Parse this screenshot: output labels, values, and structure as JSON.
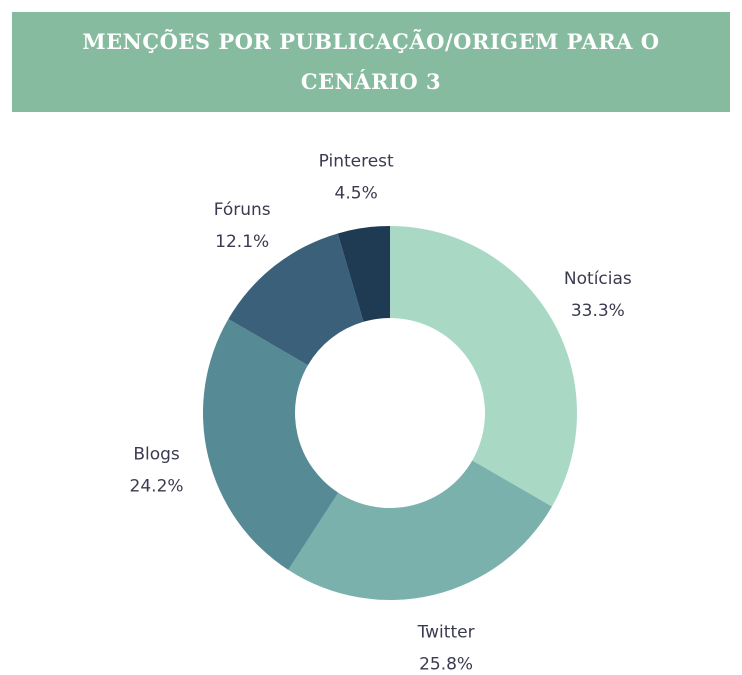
{
  "chart_data": {
    "type": "donut",
    "title": "MENÇÕES POR PUBLICAÇÃO/ORIGEM PARA O CENÁRIO 3",
    "categories": [
      "Notícias",
      "Twitter",
      "Blogs",
      "Fóruns",
      "Pinterest"
    ],
    "values": [
      33.3,
      25.8,
      24.2,
      12.1,
      4.5
    ],
    "value_labels": [
      "33.3%",
      "25.8%",
      "24.2%",
      "12.1%",
      "4.5%"
    ],
    "colors": [
      "#a9d9c5",
      "#7bb1ad",
      "#568b95",
      "#3a6179",
      "#1f3a53"
    ]
  }
}
